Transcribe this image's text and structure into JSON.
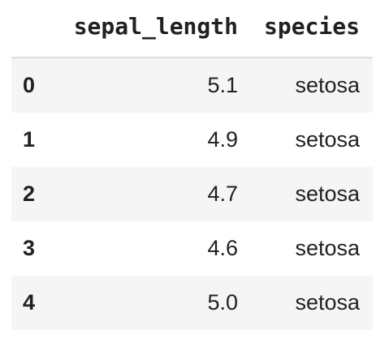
{
  "table": {
    "columns": [
      "sepal_length",
      "species"
    ],
    "rows": [
      [
        "0",
        "5.1",
        "setosa"
      ],
      [
        "1",
        "4.9",
        "setosa"
      ],
      [
        "2",
        "4.7",
        "setosa"
      ],
      [
        "3",
        "4.6",
        "setosa"
      ],
      [
        "4",
        "5.0",
        "setosa"
      ]
    ]
  }
}
